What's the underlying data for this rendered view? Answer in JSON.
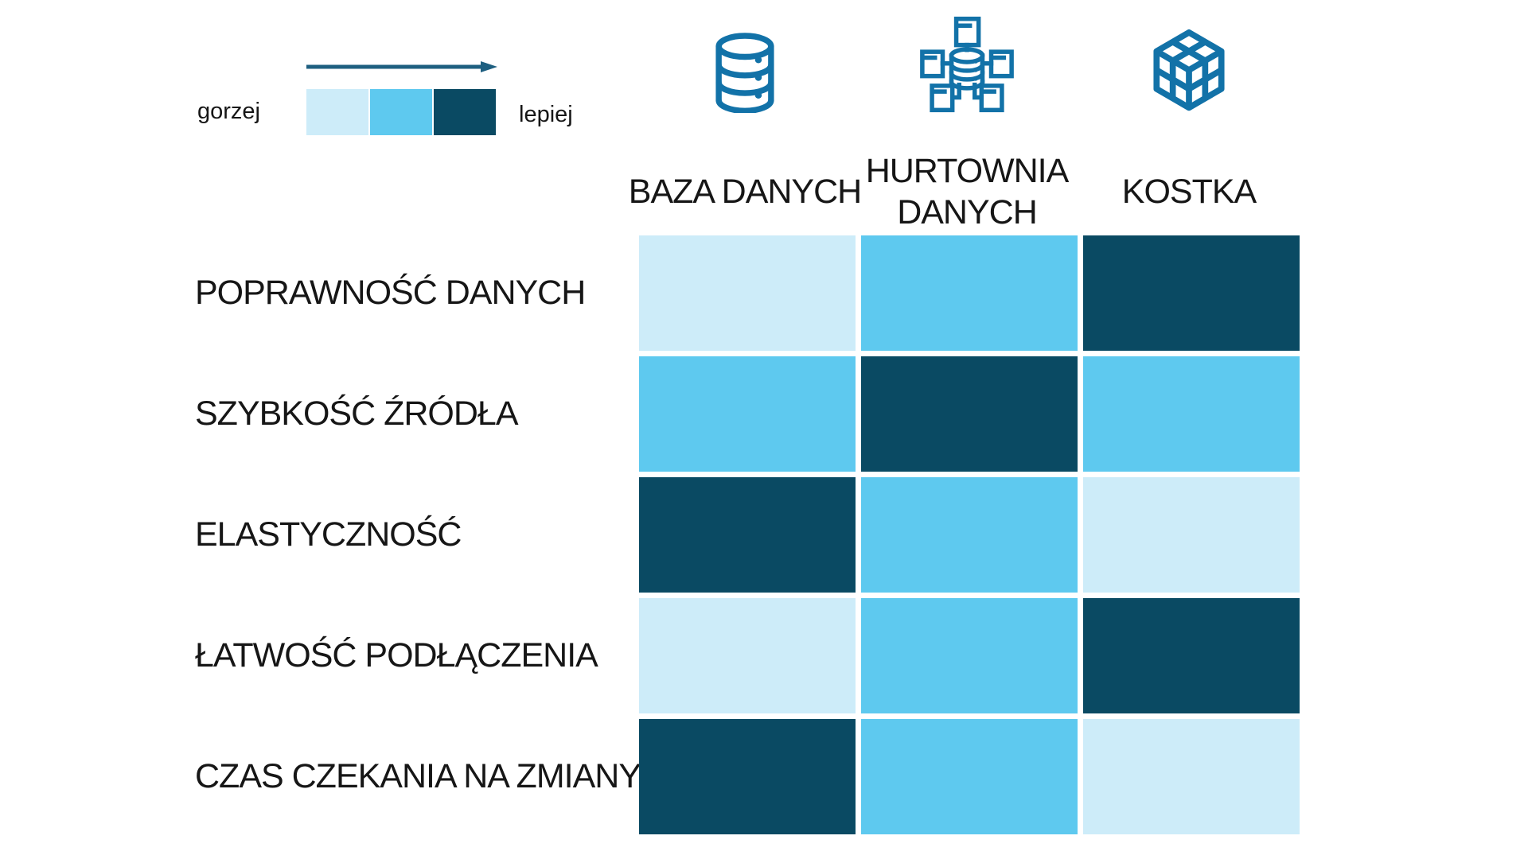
{
  "legend": {
    "worse_label": "gorzej",
    "better_label": "lepiej",
    "scale": [
      "worse",
      "medium",
      "better"
    ]
  },
  "columns": [
    {
      "label": "BAZA DANYCH",
      "icon": "database-icon"
    },
    {
      "label": "HURTOWNIA DANYCH",
      "icon": "data-warehouse-icon"
    },
    {
      "label": "KOSTKA",
      "icon": "cube-icon"
    }
  ],
  "rows": [
    {
      "label": "POPRAWNOŚĆ DANYCH",
      "values": [
        "worse",
        "medium",
        "better"
      ]
    },
    {
      "label": "SZYBKOŚĆ ŹRÓDŁA",
      "values": [
        "medium",
        "better",
        "medium"
      ]
    },
    {
      "label": "ELASTYCZNOŚĆ",
      "values": [
        "better",
        "medium",
        "worse"
      ]
    },
    {
      "label": "ŁATWOŚĆ PODŁĄCZENIA",
      "values": [
        "worse",
        "medium",
        "better"
      ]
    },
    {
      "label": "CZAS CZEKANIA NA ZMIANY",
      "values": [
        "better",
        "medium",
        "worse"
      ]
    }
  ],
  "colors": {
    "worse": "#cdecf9",
    "medium": "#5ec9ef",
    "better": "#0a4a63",
    "icon": "#1272a8",
    "arrow": "#1e5f80",
    "text": "#161616"
  },
  "chart_data": {
    "type": "heatmap",
    "title": "",
    "columns": [
      "BAZA DANYCH",
      "HURTOWNIA DANYCH",
      "KOSTKA"
    ],
    "rows": [
      "POPRAWNOŚĆ DANYCH",
      "SZYBKOŚĆ ŹRÓDŁA",
      "ELASTYCZNOŚĆ",
      "ŁATWOŚĆ PODŁĄCZENIA",
      "CZAS CZEKANIA NA ZMIANY"
    ],
    "values": [
      [
        1,
        2,
        3
      ],
      [
        2,
        3,
        2
      ],
      [
        3,
        2,
        1
      ],
      [
        1,
        2,
        3
      ],
      [
        3,
        2,
        1
      ]
    ],
    "value_scale": {
      "min": 1,
      "max": 3,
      "min_label": "gorzej",
      "max_label": "lepiej"
    },
    "palette": [
      "#cdecf9",
      "#5ec9ef",
      "#0a4a63"
    ],
    "legend_position": "top-left",
    "grid": false
  }
}
